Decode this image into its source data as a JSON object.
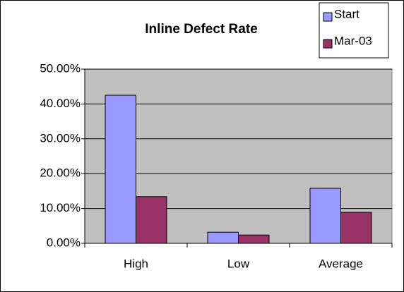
{
  "chart_data": {
    "type": "bar",
    "title": "Inline Defect Rate",
    "categories": [
      "High",
      "Low",
      "Average"
    ],
    "series": [
      {
        "name": "Start",
        "color": "#9999ff",
        "values": [
          42.5,
          3.2,
          15.8
        ]
      },
      {
        "name": "Mar-03",
        "color": "#993366",
        "values": [
          13.4,
          2.4,
          8.9
        ]
      }
    ],
    "ylim": [
      0,
      50
    ],
    "yticks": [
      {
        "value": 0,
        "label": "0.00%"
      },
      {
        "value": 10,
        "label": "10.00%"
      },
      {
        "value": 20,
        "label": "20.00%"
      },
      {
        "value": 30,
        "label": "30.00%"
      },
      {
        "value": 40,
        "label": "40.00%"
      },
      {
        "value": 50,
        "label": "50.00%"
      }
    ],
    "grid": true,
    "legend": "top-right"
  }
}
